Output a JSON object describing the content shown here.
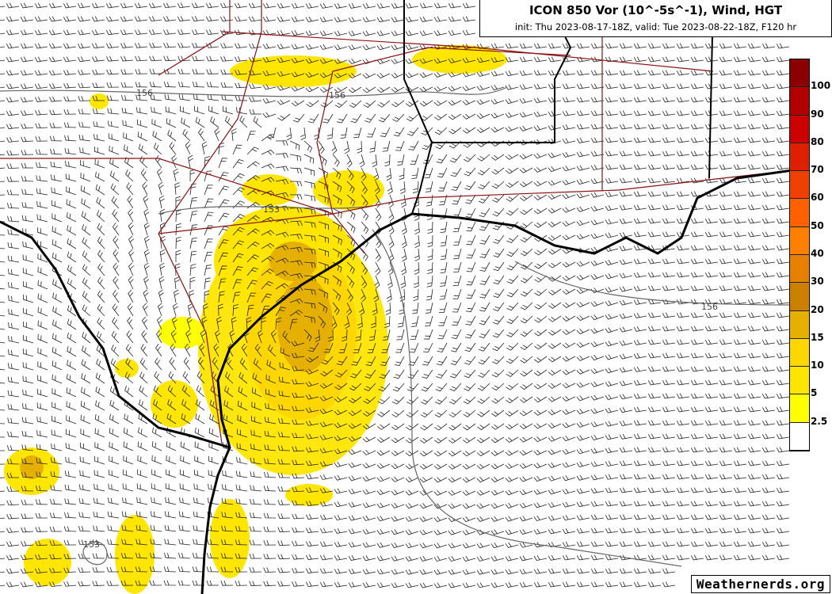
{
  "header": {
    "title": "ICON 850 Vor (10^-5s^-1), Wind, HGT",
    "subtitle": "init: Thu 2023-08-17-18Z, valid: Tue 2023-08-22-18Z, F120 hr"
  },
  "colorbar": {
    "labels": [
      "100",
      "90",
      "80",
      "70",
      "60",
      "50",
      "40",
      "30",
      "20",
      "15",
      "10",
      "5",
      "2.5"
    ],
    "colors": [
      "#8b0000",
      "#b00000",
      "#cc0000",
      "#dd2000",
      "#ee4000",
      "#ff6000",
      "#ff7f00",
      "#e68000",
      "#cc8000",
      "#e6b000",
      "#ffd700",
      "#ffe600",
      "#ffff00",
      "#ffffff"
    ]
  },
  "contours": {
    "labels": [
      "156",
      "156",
      "153",
      "156",
      "153"
    ]
  },
  "logo": "Weathernerds.org"
}
